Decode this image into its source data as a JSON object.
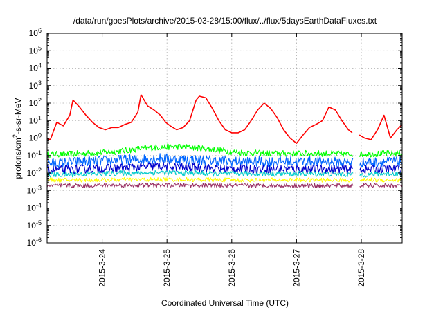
{
  "chart_data": {
    "type": "line",
    "title": "/data/run/goesPlots/archive/2015-03-28/15:00/flux/../flux/5daysEarthDataFluxes.txt",
    "xlabel": "Coordinated Universal Time (UTC)",
    "ylabel": {
      "base": "protons/cm",
      "sup": "2",
      "rest": "-s-sr-MeV"
    },
    "yscale": "log",
    "ylim_exp": [
      -6,
      6
    ],
    "y_ticks": [
      {
        "base": "10",
        "exp": "-6"
      },
      {
        "base": "10",
        "exp": "-5"
      },
      {
        "base": "10",
        "exp": "-4"
      },
      {
        "base": "10",
        "exp": "-3"
      },
      {
        "base": "10",
        "exp": "-2"
      },
      {
        "base": "10",
        "exp": "-1"
      },
      {
        "base": "10",
        "exp": "0"
      },
      {
        "base": "10",
        "exp": "1"
      },
      {
        "base": "10",
        "exp": "2"
      },
      {
        "base": "10",
        "exp": "3"
      },
      {
        "base": "10",
        "exp": "4"
      },
      {
        "base": "10",
        "exp": "5"
      },
      {
        "base": "10",
        "exp": "6"
      }
    ],
    "x_ticks": [
      {
        "label": "2015-3-24",
        "day": 24
      },
      {
        "label": "2015-3-25",
        "day": 25
      },
      {
        "label": "2015-3-26",
        "day": 26
      },
      {
        "label": "2015-3-27",
        "day": 27
      },
      {
        "label": "2015-3-28",
        "day": 28
      }
    ],
    "xlim_day": [
      23.15,
      28.63
    ],
    "data_gap_day": [
      27.87,
      27.97
    ],
    "grid": true,
    "series": [
      {
        "color": "#ff0000",
        "x": [
          23.15,
          23.2,
          23.3,
          23.4,
          23.5,
          23.55,
          23.65,
          23.75,
          23.85,
          23.95,
          24.05,
          24.15,
          24.25,
          24.35,
          24.45,
          24.55,
          24.6,
          24.7,
          24.8,
          24.9,
          24.98,
          25.05,
          25.15,
          25.25,
          25.35,
          25.45,
          25.5,
          25.6,
          25.7,
          25.8,
          25.9,
          26.0,
          26.1,
          26.2,
          26.3,
          26.4,
          26.5,
          26.6,
          26.7,
          26.8,
          26.9,
          27.0,
          27.1,
          27.2,
          27.3,
          27.4,
          27.5,
          27.6,
          27.7,
          27.8,
          27.86,
          27.97,
          28.05,
          28.15,
          28.25,
          28.35,
          28.45,
          28.55,
          28.63
        ],
        "y": [
          1.0,
          0.8,
          8,
          5,
          20,
          150,
          60,
          20,
          8,
          4,
          3,
          4,
          4,
          6,
          8,
          30,
          300,
          70,
          40,
          20,
          8,
          5,
          3,
          4,
          10,
          150,
          250,
          200,
          50,
          10,
          3,
          2,
          2,
          3,
          10,
          40,
          100,
          50,
          15,
          3,
          1,
          0.5,
          1.5,
          4,
          6,
          10,
          60,
          40,
          10,
          3,
          2,
          1.5,
          1,
          0.8,
          3,
          20,
          1,
          3,
          6
        ]
      },
      {
        "color": "#00ff00",
        "base": [
          0.12,
          0.12,
          0.13,
          0.15,
          0.18,
          0.25,
          0.3,
          0.32,
          0.28,
          0.22,
          0.16,
          0.14,
          0.13,
          0.13,
          0.13,
          0.13,
          0.12,
          0.12,
          0.13,
          0.13
        ],
        "jitter": 0.18
      },
      {
        "color": "#0066ff",
        "base": [
          0.035,
          0.04,
          0.045,
          0.05,
          0.055,
          0.06,
          0.07,
          0.06,
          0.055,
          0.05,
          0.045,
          0.045,
          0.045,
          0.045,
          0.045,
          0.045,
          0.04,
          0.04,
          0.045,
          0.045
        ],
        "jitter": 0.3
      },
      {
        "color": "#0000cc",
        "base": [
          0.015,
          0.016,
          0.017,
          0.018,
          0.02,
          0.022,
          0.024,
          0.022,
          0.02,
          0.018,
          0.017,
          0.017,
          0.017,
          0.017,
          0.017,
          0.017,
          0.016,
          0.016,
          0.017,
          0.017
        ],
        "jitter": 0.25
      },
      {
        "color": "#00cccc",
        "base": [
          0.008,
          0.008,
          0.009,
          0.009,
          0.01,
          0.01,
          0.011,
          0.01,
          0.01,
          0.009,
          0.009,
          0.009,
          0.009,
          0.009,
          0.009,
          0.009,
          0.008,
          0.008,
          0.009,
          0.009
        ],
        "jitter": 0.15
      },
      {
        "color": "#ffff00",
        "base": [
          0.004,
          0.004,
          0.004,
          0.004,
          0.0042,
          0.0042,
          0.0043,
          0.0042,
          0.0042,
          0.0041,
          0.004,
          0.004,
          0.004,
          0.004,
          0.004,
          0.004,
          0.004,
          0.004,
          0.004,
          0.004
        ],
        "jitter": 0.12
      },
      {
        "color": "#993366",
        "base": [
          0.0019,
          0.0019,
          0.0019,
          0.002,
          0.002,
          0.002,
          0.002,
          0.002,
          0.002,
          0.0019,
          0.0019,
          0.0019,
          0.0019,
          0.0019,
          0.0019,
          0.0019,
          0.0019,
          0.0019,
          0.0019,
          0.0019
        ],
        "jitter": 0.12
      }
    ]
  }
}
